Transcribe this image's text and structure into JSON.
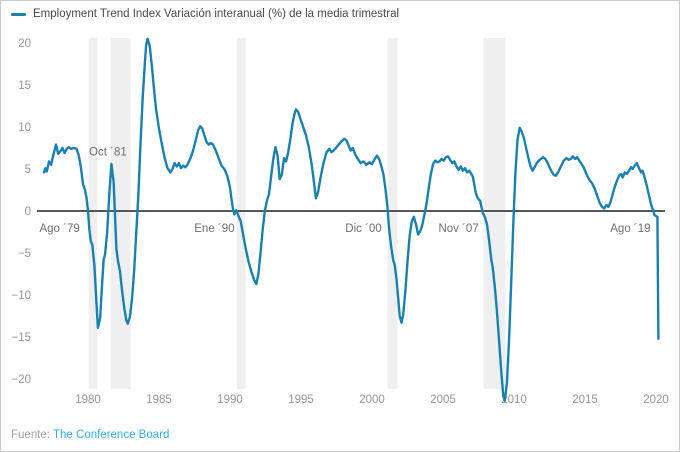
{
  "legend": {
    "label": "Employment Trend Index Variación interanual (%) de la media trimestral"
  },
  "footer": {
    "source_label": "Fuente:",
    "source_link": "The Conference Board"
  },
  "colors": {
    "line": "#1a80b0",
    "zero_line": "#3f3f3f",
    "band": "#efefef",
    "tick_text": "#969696",
    "annotation_text": "#6e6e6e",
    "legend_text": "#4a4a4a",
    "footer_text": "#a2a2a2",
    "footer_link": "#35aee3"
  },
  "chart_data": {
    "type": "line",
    "title": "Employment Trend Index Variación interanual (%) de la media trimestral",
    "xlabel": "",
    "ylabel": "",
    "xlim": [
      1976.5,
      2020.6
    ],
    "ylim": [
      -20,
      20
    ],
    "grid": false,
    "zero_line": true,
    "legend_position": "top-left",
    "x_ticks": [
      1980,
      1985,
      1990,
      1995,
      2000,
      2005,
      2010,
      2015,
      2020
    ],
    "y_ticks": [
      20,
      15,
      10,
      5,
      0,
      -5,
      -10,
      -15,
      -20
    ],
    "annotations": [
      {
        "text": "Ago ´79",
        "x": 1978.0,
        "y": -2.0
      },
      {
        "text": "Oct ´81",
        "x": 1981.4,
        "y": 7.1
      },
      {
        "text": "Ene ´90",
        "x": 1988.9,
        "y": -2.0
      },
      {
        "text": "Dic ´00",
        "x": 1999.4,
        "y": -2.0
      },
      {
        "text": "Nov ´07",
        "x": 2006.1,
        "y": -2.0
      },
      {
        "text": "Ago ´19",
        "x": 2018.2,
        "y": -2.0
      }
    ],
    "recession_bands": [
      [
        1980.05,
        1980.65
      ],
      [
        1981.6,
        1983.0
      ],
      [
        1990.5,
        1991.1
      ],
      [
        2001.1,
        2001.8
      ],
      [
        2007.85,
        2009.4
      ]
    ],
    "series": [
      {
        "name": "Employment Trend Index Variación interanual (%) de la media trimestral",
        "points": [
          [
            1976.9,
            4.6
          ],
          [
            1977.0,
            5.1
          ],
          [
            1977.1,
            4.7
          ],
          [
            1977.25,
            5.9
          ],
          [
            1977.4,
            5.5
          ],
          [
            1977.55,
            6.6
          ],
          [
            1977.75,
            7.9
          ],
          [
            1977.9,
            6.8
          ],
          [
            1978.05,
            7.1
          ],
          [
            1978.2,
            7.5
          ],
          [
            1978.35,
            6.9
          ],
          [
            1978.5,
            7.4
          ],
          [
            1978.65,
            7.6
          ],
          [
            1978.8,
            7.4
          ],
          [
            1979.0,
            7.5
          ],
          [
            1979.2,
            7.4
          ],
          [
            1979.35,
            6.6
          ],
          [
            1979.5,
            5.2
          ],
          [
            1979.65,
            3.2
          ],
          [
            1979.8,
            2.4
          ],
          [
            1979.9,
            1.5
          ],
          [
            1980.0,
            0.0
          ],
          [
            1980.1,
            -2.2
          ],
          [
            1980.2,
            -3.6
          ],
          [
            1980.3,
            -4.0
          ],
          [
            1980.45,
            -6.5
          ],
          [
            1980.6,
            -11.0
          ],
          [
            1980.7,
            -13.9
          ],
          [
            1980.85,
            -12.8
          ],
          [
            1981.0,
            -8.5
          ],
          [
            1981.1,
            -5.8
          ],
          [
            1981.2,
            -5.2
          ],
          [
            1981.35,
            -2.5
          ],
          [
            1981.5,
            2.0
          ],
          [
            1981.65,
            5.6
          ],
          [
            1981.8,
            3.5
          ],
          [
            1981.9,
            -0.5
          ],
          [
            1982.0,
            -4.5
          ],
          [
            1982.1,
            -5.8
          ],
          [
            1982.25,
            -7.2
          ],
          [
            1982.4,
            -9.5
          ],
          [
            1982.55,
            -11.5
          ],
          [
            1982.7,
            -13.0
          ],
          [
            1982.8,
            -13.4
          ],
          [
            1982.95,
            -12.6
          ],
          [
            1983.1,
            -10.5
          ],
          [
            1983.25,
            -7.0
          ],
          [
            1983.4,
            -2.5
          ],
          [
            1983.55,
            2.0
          ],
          [
            1983.7,
            8.0
          ],
          [
            1983.85,
            13.5
          ],
          [
            1984.0,
            17.5
          ],
          [
            1984.1,
            19.8
          ],
          [
            1984.2,
            20.5
          ],
          [
            1984.35,
            19.6
          ],
          [
            1984.5,
            17.2
          ],
          [
            1984.65,
            14.5
          ],
          [
            1984.8,
            12.0
          ],
          [
            1985.0,
            9.8
          ],
          [
            1985.2,
            8.0
          ],
          [
            1985.4,
            6.3
          ],
          [
            1985.6,
            5.1
          ],
          [
            1985.8,
            4.6
          ],
          [
            1985.95,
            5.0
          ],
          [
            1986.1,
            5.7
          ],
          [
            1986.25,
            5.3
          ],
          [
            1986.4,
            5.7
          ],
          [
            1986.55,
            5.1
          ],
          [
            1986.7,
            5.4
          ],
          [
            1986.85,
            5.2
          ],
          [
            1987.0,
            5.5
          ],
          [
            1987.2,
            6.2
          ],
          [
            1987.4,
            7.2
          ],
          [
            1987.6,
            8.5
          ],
          [
            1987.75,
            9.6
          ],
          [
            1987.9,
            10.1
          ],
          [
            1988.05,
            9.8
          ],
          [
            1988.2,
            9.0
          ],
          [
            1988.35,
            8.2
          ],
          [
            1988.5,
            7.9
          ],
          [
            1988.65,
            8.1
          ],
          [
            1988.8,
            7.9
          ],
          [
            1989.0,
            7.2
          ],
          [
            1989.2,
            6.3
          ],
          [
            1989.4,
            5.4
          ],
          [
            1989.6,
            5.0
          ],
          [
            1989.8,
            4.2
          ],
          [
            1990.0,
            2.8
          ],
          [
            1990.1,
            1.5
          ],
          [
            1990.2,
            0.4
          ],
          [
            1990.3,
            -0.4
          ],
          [
            1990.45,
            0.1
          ],
          [
            1990.6,
            -0.6
          ],
          [
            1990.75,
            -1.2
          ],
          [
            1990.9,
            -2.6
          ],
          [
            1991.1,
            -4.4
          ],
          [
            1991.3,
            -6.0
          ],
          [
            1991.5,
            -7.2
          ],
          [
            1991.7,
            -8.2
          ],
          [
            1991.85,
            -8.7
          ],
          [
            1992.0,
            -7.5
          ],
          [
            1992.15,
            -5.0
          ],
          [
            1992.3,
            -2.2
          ],
          [
            1992.45,
            0.0
          ],
          [
            1992.6,
            1.2
          ],
          [
            1992.75,
            2.0
          ],
          [
            1992.9,
            4.2
          ],
          [
            1993.05,
            6.2
          ],
          [
            1993.2,
            7.6
          ],
          [
            1993.35,
            6.6
          ],
          [
            1993.5,
            3.8
          ],
          [
            1993.65,
            4.3
          ],
          [
            1993.8,
            6.3
          ],
          [
            1993.95,
            5.9
          ],
          [
            1994.1,
            7.0
          ],
          [
            1994.25,
            8.6
          ],
          [
            1994.4,
            10.4
          ],
          [
            1994.55,
            11.6
          ],
          [
            1994.65,
            12.1
          ],
          [
            1994.8,
            11.8
          ],
          [
            1994.95,
            11.0
          ],
          [
            1995.1,
            10.3
          ],
          [
            1995.35,
            9.0
          ],
          [
            1995.55,
            7.6
          ],
          [
            1995.75,
            5.6
          ],
          [
            1995.9,
            3.6
          ],
          [
            1996.05,
            1.5
          ],
          [
            1996.2,
            2.2
          ],
          [
            1996.4,
            4.2
          ],
          [
            1996.6,
            5.8
          ],
          [
            1996.8,
            7.0
          ],
          [
            1997.0,
            7.4
          ],
          [
            1997.15,
            7.0
          ],
          [
            1997.3,
            7.2
          ],
          [
            1997.5,
            7.6
          ],
          [
            1997.7,
            8.0
          ],
          [
            1997.85,
            8.3
          ],
          [
            1998.05,
            8.6
          ],
          [
            1998.2,
            8.4
          ],
          [
            1998.35,
            7.8
          ],
          [
            1998.5,
            7.2
          ],
          [
            1998.65,
            7.5
          ],
          [
            1998.8,
            6.8
          ],
          [
            1999.0,
            6.2
          ],
          [
            1999.2,
            5.7
          ],
          [
            1999.4,
            5.9
          ],
          [
            1999.6,
            5.5
          ],
          [
            1999.8,
            5.8
          ],
          [
            2000.0,
            5.6
          ],
          [
            2000.2,
            6.2
          ],
          [
            2000.35,
            6.6
          ],
          [
            2000.5,
            6.2
          ],
          [
            2000.65,
            5.4
          ],
          [
            2000.8,
            4.4
          ],
          [
            2000.95,
            2.6
          ],
          [
            2001.1,
            0.3
          ],
          [
            2001.2,
            -2.0
          ],
          [
            2001.35,
            -4.3
          ],
          [
            2001.5,
            -5.9
          ],
          [
            2001.6,
            -6.4
          ],
          [
            2001.72,
            -8.0
          ],
          [
            2001.85,
            -10.5
          ],
          [
            2001.95,
            -12.5
          ],
          [
            2002.08,
            -13.3
          ],
          [
            2002.2,
            -12.3
          ],
          [
            2002.35,
            -9.5
          ],
          [
            2002.5,
            -6.0
          ],
          [
            2002.65,
            -3.0
          ],
          [
            2002.8,
            -1.2
          ],
          [
            2002.95,
            -0.7
          ],
          [
            2003.1,
            -1.6
          ],
          [
            2003.25,
            -2.8
          ],
          [
            2003.4,
            -2.4
          ],
          [
            2003.55,
            -1.6
          ],
          [
            2003.7,
            -0.4
          ],
          [
            2003.85,
            1.0
          ],
          [
            2004.0,
            2.8
          ],
          [
            2004.15,
            4.4
          ],
          [
            2004.3,
            5.6
          ],
          [
            2004.45,
            6.0
          ],
          [
            2004.6,
            5.8
          ],
          [
            2004.75,
            5.9
          ],
          [
            2004.9,
            6.2
          ],
          [
            2005.05,
            6.0
          ],
          [
            2005.2,
            6.4
          ],
          [
            2005.35,
            6.5
          ],
          [
            2005.5,
            6.1
          ],
          [
            2005.65,
            5.7
          ],
          [
            2005.8,
            5.9
          ],
          [
            2005.95,
            5.3
          ],
          [
            2006.1,
            4.9
          ],
          [
            2006.25,
            5.3
          ],
          [
            2006.4,
            4.8
          ],
          [
            2006.55,
            5.1
          ],
          [
            2006.7,
            4.6
          ],
          [
            2006.85,
            4.8
          ],
          [
            2007.0,
            4.4
          ],
          [
            2007.1,
            4.1
          ],
          [
            2007.2,
            3.2
          ],
          [
            2007.3,
            2.2
          ],
          [
            2007.4,
            1.7
          ],
          [
            2007.5,
            1.4
          ],
          [
            2007.62,
            1.2
          ],
          [
            2007.72,
            0.4
          ],
          [
            2007.82,
            -0.3
          ],
          [
            2007.95,
            -0.7
          ],
          [
            2008.1,
            -1.6
          ],
          [
            2008.25,
            -3.5
          ],
          [
            2008.4,
            -5.8
          ],
          [
            2008.5,
            -6.7
          ],
          [
            2008.65,
            -9.0
          ],
          [
            2008.8,
            -12.0
          ],
          [
            2008.95,
            -15.5
          ],
          [
            2009.1,
            -19.0
          ],
          [
            2009.25,
            -22.0
          ],
          [
            2009.35,
            -22.6
          ],
          [
            2009.5,
            -20.5
          ],
          [
            2009.65,
            -15.5
          ],
          [
            2009.8,
            -8.5
          ],
          [
            2009.95,
            -1.5
          ],
          [
            2010.1,
            4.5
          ],
          [
            2010.25,
            8.5
          ],
          [
            2010.4,
            9.9
          ],
          [
            2010.55,
            9.4
          ],
          [
            2010.7,
            8.7
          ],
          [
            2010.85,
            7.5
          ],
          [
            2011.0,
            6.4
          ],
          [
            2011.15,
            5.4
          ],
          [
            2011.3,
            4.8
          ],
          [
            2011.45,
            5.2
          ],
          [
            2011.6,
            5.7
          ],
          [
            2011.75,
            6.0
          ],
          [
            2011.9,
            6.2
          ],
          [
            2012.05,
            6.4
          ],
          [
            2012.2,
            6.2
          ],
          [
            2012.35,
            5.8
          ],
          [
            2012.5,
            5.2
          ],
          [
            2012.65,
            4.7
          ],
          [
            2012.8,
            4.3
          ],
          [
            2012.95,
            4.2
          ],
          [
            2013.1,
            4.6
          ],
          [
            2013.3,
            5.3
          ],
          [
            2013.5,
            6.0
          ],
          [
            2013.7,
            6.3
          ],
          [
            2013.85,
            6.1
          ],
          [
            2014.0,
            6.2
          ],
          [
            2014.15,
            6.5
          ],
          [
            2014.3,
            6.2
          ],
          [
            2014.45,
            6.4
          ],
          [
            2014.6,
            6.0
          ],
          [
            2014.75,
            5.6
          ],
          [
            2014.9,
            5.2
          ],
          [
            2015.1,
            4.4
          ],
          [
            2015.3,
            3.7
          ],
          [
            2015.5,
            3.3
          ],
          [
            2015.7,
            2.6
          ],
          [
            2015.9,
            1.6
          ],
          [
            2016.05,
            0.9
          ],
          [
            2016.2,
            0.5
          ],
          [
            2016.35,
            0.3
          ],
          [
            2016.5,
            0.7
          ],
          [
            2016.65,
            0.5
          ],
          [
            2016.8,
            1.1
          ],
          [
            2016.95,
            2.0
          ],
          [
            2017.1,
            2.9
          ],
          [
            2017.25,
            3.6
          ],
          [
            2017.4,
            4.2
          ],
          [
            2017.55,
            4.4
          ],
          [
            2017.65,
            4.0
          ],
          [
            2017.8,
            4.6
          ],
          [
            2017.95,
            4.4
          ],
          [
            2018.1,
            4.8
          ],
          [
            2018.25,
            5.2
          ],
          [
            2018.35,
            5.0
          ],
          [
            2018.5,
            5.4
          ],
          [
            2018.65,
            5.7
          ],
          [
            2018.8,
            5.1
          ],
          [
            2018.95,
            4.6
          ],
          [
            2019.05,
            4.8
          ],
          [
            2019.2,
            4.0
          ],
          [
            2019.35,
            3.0
          ],
          [
            2019.5,
            1.9
          ],
          [
            2019.65,
            0.8
          ],
          [
            2019.8,
            0.0
          ],
          [
            2019.9,
            -0.5
          ],
          [
            2020.0,
            -0.6
          ],
          [
            2020.1,
            -0.7
          ],
          [
            2020.17,
            -15.2
          ]
        ]
      }
    ]
  }
}
